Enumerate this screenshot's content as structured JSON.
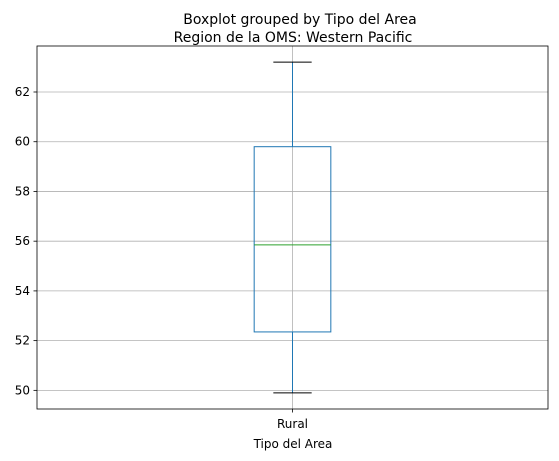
{
  "chart_data": {
    "type": "boxplot",
    "suptitle": "Boxplot grouped by Tipo del Area",
    "title": "Region de la OMS: Western Pacific",
    "xlabel": "Tipo del Area",
    "ylabel": "",
    "categories": [
      "Rural"
    ],
    "boxes": [
      {
        "category": "Rural",
        "whisker_low": 49.9,
        "q1": 52.35,
        "median": 55.85,
        "q3": 59.8,
        "whisker_high": 63.2
      }
    ],
    "ylim": [
      49.25,
      63.85
    ],
    "yticks": [
      50,
      52,
      54,
      56,
      58,
      60,
      62
    ],
    "grid": true,
    "colors": {
      "box": "#1f77b4",
      "median": "#2ca02c",
      "whisker_cap": "#000000",
      "grid": "#b0b0b0"
    }
  }
}
